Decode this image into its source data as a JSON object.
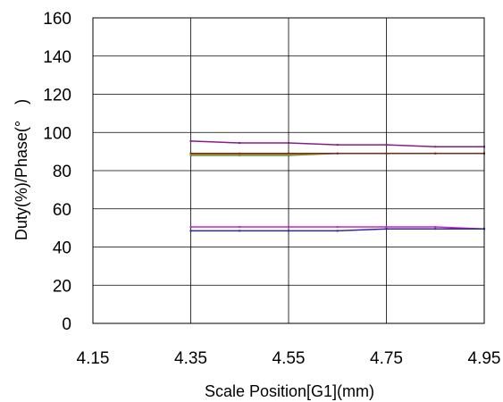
{
  "chart_data": {
    "type": "line",
    "title": "",
    "xlabel": "Scale Position[G1](mm)",
    "ylabel": "Duty(%)/Phase(°　)",
    "xlim": [
      4.15,
      4.95
    ],
    "ylim": [
      0,
      160
    ],
    "x_ticks": [
      "4.15",
      "4.35",
      "4.55",
      "4.75",
      "4.95"
    ],
    "y_ticks": [
      "0",
      "20",
      "40",
      "60",
      "80",
      "100",
      "120",
      "140",
      "160"
    ],
    "grid": true,
    "legend": "none",
    "x": [
      4.35,
      4.45,
      4.55,
      4.65,
      4.75,
      4.85,
      4.95
    ],
    "series": [
      {
        "color": "#8a1a8a",
        "values": [
          95.5,
          94.5,
          94.5,
          93.5,
          93.5,
          92.5,
          92.5
        ]
      },
      {
        "color": "#1a9a3a",
        "values": [
          88.0,
          88.0,
          88.0,
          89.0,
          89.0,
          89.0,
          89.0
        ]
      },
      {
        "color": "#e08a1a",
        "values": [
          88.5,
          88.5,
          88.5,
          89.0,
          89.0,
          89.0,
          89.0
        ]
      },
      {
        "color": "#7a2a1a",
        "values": [
          89.0,
          89.0,
          89.0,
          89.0,
          89.0,
          89.0,
          89.0
        ]
      },
      {
        "color": "#cc22cc",
        "values": [
          50.5,
          50.5,
          50.5,
          50.5,
          50.5,
          50.5,
          49.5
        ]
      },
      {
        "color": "#2a2aa0",
        "values": [
          48.5,
          48.5,
          48.5,
          48.5,
          49.5,
          49.5,
          49.5
        ]
      }
    ]
  }
}
